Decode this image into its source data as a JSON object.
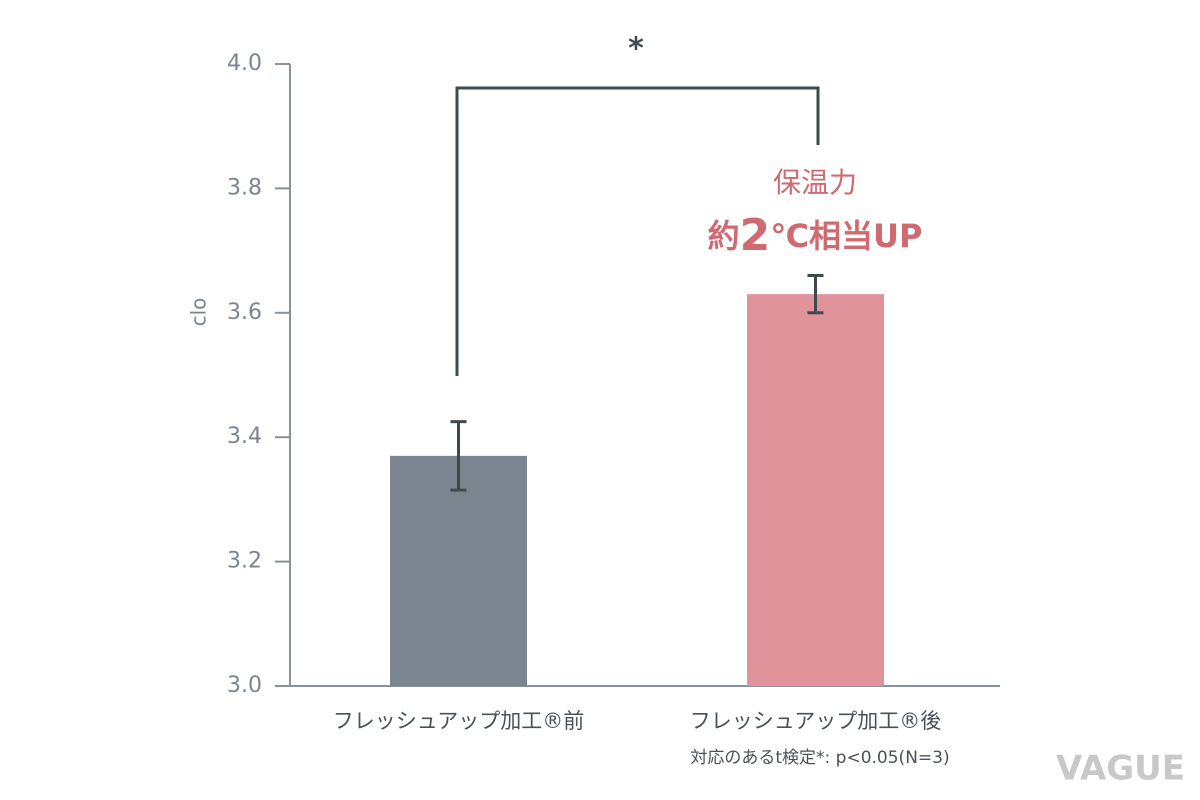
{
  "chart_data": {
    "type": "bar",
    "categories": [
      "フレッシュアップ加工®前",
      "フレッシュアップ加工®後"
    ],
    "values": [
      3.37,
      3.63
    ],
    "errors": [
      0.055,
      0.03
    ],
    "colors": [
      "#7b8590",
      "#e0939a"
    ],
    "y_label": "clo",
    "ylim": [
      3.0,
      4.0
    ],
    "yticks": [
      {
        "value": 3,
        "label": "3.0"
      },
      3.2,
      3.4,
      3.6,
      3.8,
      {
        "value": 4,
        "label": "4.0"
      }
    ],
    "significance": "*",
    "annotation": {
      "line1": "保温力",
      "line2": [
        "約",
        "2",
        "℃相当UP"
      ]
    },
    "footnote": "対応のあるt検定*: p<0.05(N=3)",
    "watermark": "VAGUE"
  }
}
